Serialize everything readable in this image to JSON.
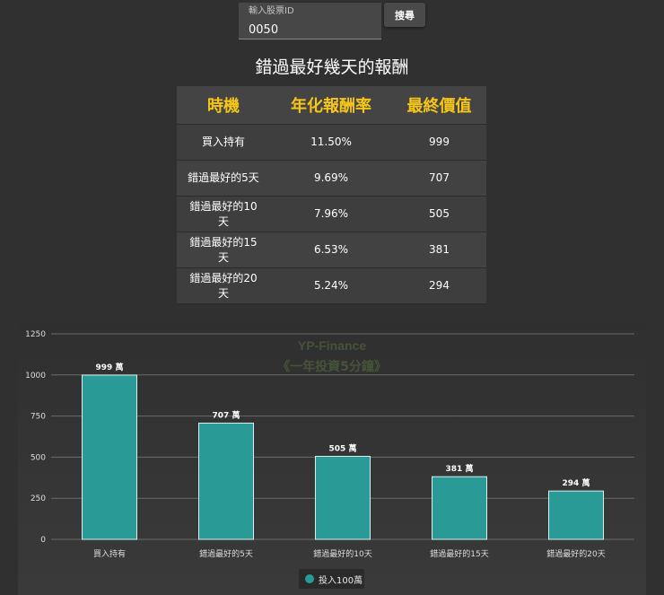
{
  "search": {
    "label": "輸入股票ID",
    "value": "0050",
    "button": "搜尋"
  },
  "title": "錯過最好幾天的報酬",
  "table": {
    "headers": [
      "時機",
      "年化報酬率",
      "最終價值"
    ],
    "rows": [
      [
        "買入持有",
        "11.50%",
        "999"
      ],
      [
        "錯過最好的5天",
        "9.69%",
        "707"
      ],
      [
        "錯過最好的10天",
        "7.96%",
        "505"
      ],
      [
        "錯過最好的15天",
        "6.53%",
        "381"
      ],
      [
        "錯過最好的20天",
        "5.24%",
        "294"
      ]
    ]
  },
  "chart_data": {
    "type": "bar",
    "categories": [
      "買入持有",
      "錯過最好的5天",
      "錯過最好的10天",
      "錯過最好的15天",
      "錯過最好的20天"
    ],
    "series": [
      {
        "name": "投入100萬",
        "values": [
          999,
          707,
          505,
          381,
          294
        ],
        "color": "#2a9a96"
      }
    ],
    "data_labels": [
      "999 萬",
      "707 萬",
      "505 萬",
      "381 萬",
      "294 萬"
    ],
    "yticks": [
      0,
      250,
      500,
      750,
      1000,
      1250
    ],
    "ylim": [
      0,
      1250
    ],
    "watermark": [
      "YP-Finance",
      "《一年投資5分鐘》"
    ],
    "grid": true,
    "legend": "bottom-center"
  },
  "colors": {
    "header_accent": "#f5c518",
    "bar": "#2a9a96",
    "background": "#303030"
  }
}
